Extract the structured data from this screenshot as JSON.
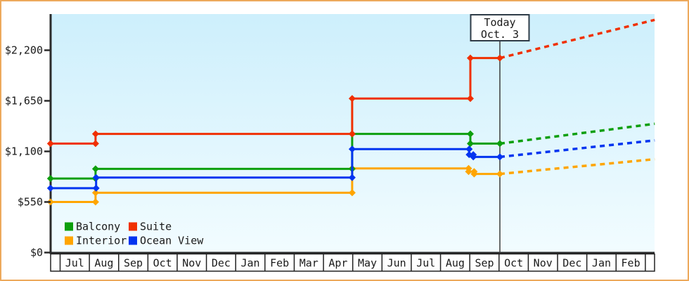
{
  "chart_data": {
    "type": "line",
    "style": "step",
    "title": "",
    "y_axis": {
      "max": 2200,
      "ticks": [
        {
          "value": 2200,
          "label": "$2,200"
        },
        {
          "value": 1650,
          "label": "$1,650"
        },
        {
          "value": 1100,
          "label": "$1,100"
        },
        {
          "value": 550,
          "label": "$550"
        },
        {
          "value": 0,
          "label": "$0"
        }
      ]
    },
    "x_axis": {
      "unit": "month",
      "months": [
        "Jul",
        "Aug",
        "Sep",
        "Oct",
        "Nov",
        "Dec",
        "Jan",
        "Feb",
        "Mar",
        "Apr",
        "May",
        "Jun",
        "Jul",
        "Aug",
        "Sep",
        "Oct",
        "Nov",
        "Dec",
        "Jan",
        "Feb"
      ]
    },
    "today": {
      "line1": "Today",
      "line2": "Oct. 3",
      "month_offset": 15.03
    },
    "series": [
      {
        "name": "Interior",
        "color": "#ffa500",
        "points": [
          [
            -0.33,
            550
          ],
          [
            1.21,
            550
          ],
          [
            1.21,
            650
          ],
          [
            9.98,
            650
          ],
          [
            9.98,
            915
          ],
          [
            13.96,
            915
          ],
          [
            13.96,
            880
          ],
          [
            14.15,
            880
          ],
          [
            14.15,
            855
          ],
          [
            15.03,
            855
          ]
        ],
        "projection": [
          [
            15.03,
            855
          ],
          [
            20.32,
            1015
          ]
        ]
      },
      {
        "name": "Balcony",
        "color": "#0d9f0d",
        "points": [
          [
            -0.33,
            805
          ],
          [
            1.21,
            805
          ],
          [
            1.21,
            910
          ],
          [
            9.98,
            910
          ],
          [
            9.98,
            1290
          ],
          [
            14.02,
            1290
          ],
          [
            14.02,
            1185
          ],
          [
            15.03,
            1185
          ]
        ],
        "projection": [
          [
            15.03,
            1185
          ],
          [
            20.32,
            1400
          ]
        ]
      },
      {
        "name": "Ocean View",
        "color": "#0334f0",
        "points": [
          [
            -0.33,
            700
          ],
          [
            1.23,
            700
          ],
          [
            1.23,
            815
          ],
          [
            9.98,
            815
          ],
          [
            9.98,
            1125
          ],
          [
            13.98,
            1125
          ],
          [
            13.98,
            1065
          ],
          [
            14.12,
            1065
          ],
          [
            14.12,
            1040
          ],
          [
            15.03,
            1040
          ]
        ],
        "projection": [
          [
            15.03,
            1040
          ],
          [
            20.32,
            1220
          ]
        ]
      },
      {
        "name": "Suite",
        "color": "#f03000",
        "points": [
          [
            -0.33,
            1185
          ],
          [
            1.21,
            1185
          ],
          [
            1.21,
            1290
          ],
          [
            9.98,
            1290
          ],
          [
            9.98,
            1675
          ],
          [
            14.02,
            1675
          ],
          [
            14.02,
            2115
          ],
          [
            15.03,
            2115
          ]
        ],
        "projection": [
          [
            15.03,
            2115
          ],
          [
            20.32,
            2530
          ]
        ]
      }
    ],
    "legend": [
      {
        "label": "Balcony",
        "color": "#0d9f0d"
      },
      {
        "label": "Suite",
        "color": "#f03000"
      },
      {
        "label": "Interior",
        "color": "#ffa500"
      },
      {
        "label": "Ocean View",
        "color": "#0334f0"
      }
    ],
    "colors": {
      "frame_border": "#eda95c",
      "plot_bg_top": "#cdeffc",
      "plot_bg_bottom": "#f2fcff",
      "axis": "#2b2b2b",
      "today_line": "#3c3c3c"
    },
    "layout_hints": {
      "legend_position": "bottom-left",
      "grid": "off",
      "projection_style": "dashed"
    }
  }
}
